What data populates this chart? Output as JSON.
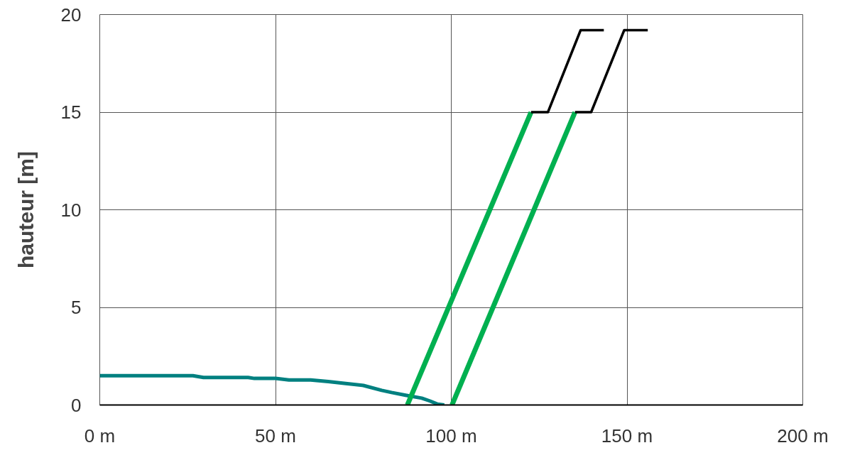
{
  "chart_data": {
    "type": "line",
    "ylabel": "hauteur [m]",
    "xlim": [
      0,
      200
    ],
    "ylim": [
      0,
      20
    ],
    "xticks": [
      {
        "value": 0,
        "label": "0 m"
      },
      {
        "value": 50,
        "label": "50 m"
      },
      {
        "value": 100,
        "label": "100 m"
      },
      {
        "value": 150,
        "label": "150 m"
      },
      {
        "value": 200,
        "label": "200 m"
      }
    ],
    "yticks": [
      0,
      5,
      10,
      15,
      20
    ],
    "grid": true,
    "marker": "none",
    "line_style": "solid",
    "series": [
      {
        "color": "#008080",
        "x": [
          0,
          26.5,
          29.5,
          42.2,
          44,
          50,
          53.8,
          60,
          65,
          70,
          75,
          80.2,
          83,
          87,
          91.6,
          94,
          96,
          98
        ],
        "values": [
          1.5,
          1.5,
          1.41,
          1.41,
          1.36,
          1.36,
          1.28,
          1.28,
          1.2,
          1.1,
          1.0,
          0.75,
          0.64,
          0.5,
          0.35,
          0.2,
          0.05,
          0
        ]
      },
      {
        "color": "#00b050",
        "x": [
          87.5,
          122.7
        ],
        "values": [
          0,
          15
        ]
      },
      {
        "color": "#00b050",
        "x": [
          100.2,
          135.2
        ],
        "values": [
          0,
          15
        ]
      },
      {
        "color": "#000000",
        "x": [
          122.7,
          127.5,
          136.8,
          143.4
        ],
        "values": [
          15,
          15,
          19.2,
          19.2
        ]
      },
      {
        "color": "#000000",
        "x": [
          135.2,
          139.8,
          149.2,
          155.9
        ],
        "values": [
          15,
          15,
          19.2,
          19.2
        ]
      }
    ]
  }
}
